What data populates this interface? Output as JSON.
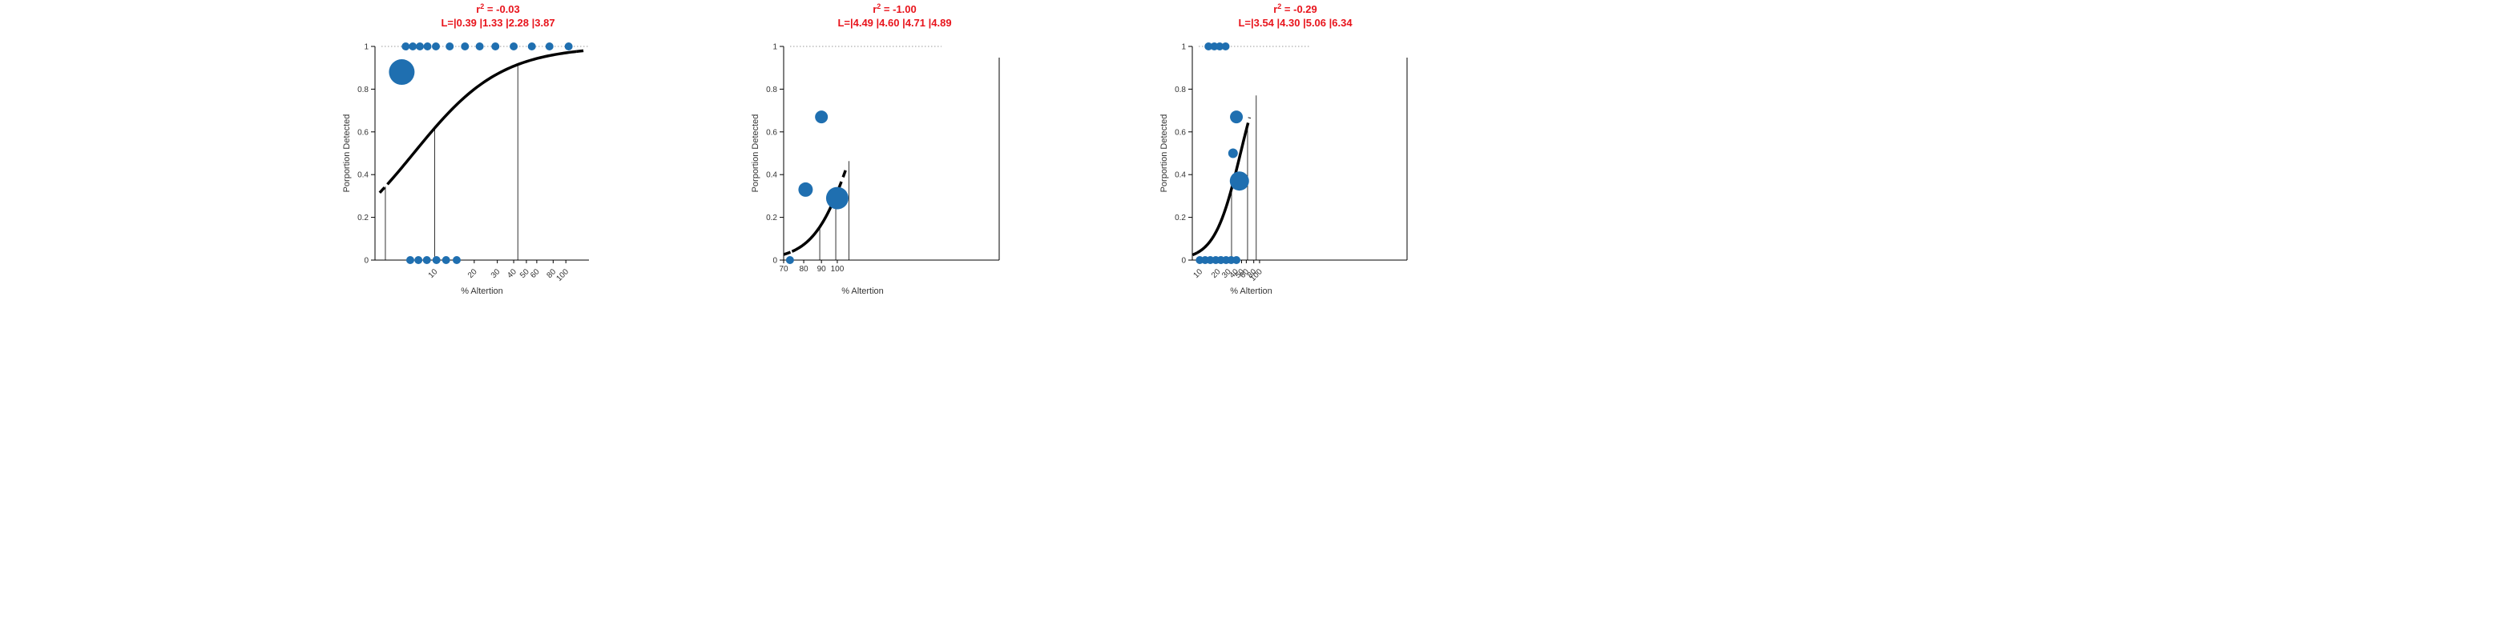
{
  "colors": {
    "title": "#e8141c",
    "marker": "#1f6fb0",
    "curve": "#000000",
    "axis": "#000000",
    "guide": "#999999"
  },
  "chart_data": [
    {
      "type": "scatter",
      "title_line1_prefix": "r",
      "title_line1_sup": "2",
      "title_line1_rest": " = -0.03",
      "title_line2": "L=|0.39 |1.33 |2.28 |3.87",
      "xlabel": "% Altertion",
      "ylabel": "Porportion Detected",
      "yticks": [
        "0",
        "0.2",
        "0.4",
        "0.6",
        "0.8",
        "1"
      ],
      "xticks": [
        "10",
        "20",
        "30",
        "40",
        "50",
        "60",
        "80",
        "100"
      ],
      "x_scale": "log",
      "xlim": [
        3.5,
        150
      ],
      "ylim": [
        0,
        1
      ],
      "points": [
        {
          "x": 5.6,
          "y": 0.88,
          "size": 16
        },
        {
          "x": 6.0,
          "y": 1,
          "size": 5
        },
        {
          "x": 6.8,
          "y": 1,
          "size": 5
        },
        {
          "x": 7.7,
          "y": 1,
          "size": 5
        },
        {
          "x": 8.8,
          "y": 1,
          "size": 5
        },
        {
          "x": 10.2,
          "y": 1,
          "size": 5
        },
        {
          "x": 13,
          "y": 1,
          "size": 5
        },
        {
          "x": 17,
          "y": 1,
          "size": 5
        },
        {
          "x": 22,
          "y": 1,
          "size": 5
        },
        {
          "x": 29,
          "y": 1,
          "size": 5
        },
        {
          "x": 40,
          "y": 1,
          "size": 5
        },
        {
          "x": 55,
          "y": 1,
          "size": 5
        },
        {
          "x": 75,
          "y": 1,
          "size": 5
        },
        {
          "x": 105,
          "y": 1,
          "size": 5
        },
        {
          "x": 6.5,
          "y": 0,
          "size": 5
        },
        {
          "x": 7.5,
          "y": 0,
          "size": 5
        },
        {
          "x": 8.7,
          "y": 0,
          "size": 5
        },
        {
          "x": 10.3,
          "y": 0,
          "size": 5
        },
        {
          "x": 12.2,
          "y": 0,
          "size": 5
        },
        {
          "x": 14.7,
          "y": 0,
          "size": 5
        }
      ],
      "threshold_lines": [
        4.2,
        10,
        43
      ],
      "curve": {
        "x0": 6.9,
        "slope": 1.3,
        "solid_range": [
          4.35,
          120
        ],
        "dash_range": [
          3.8,
          140
        ]
      },
      "extra_frame_x": null
    },
    {
      "type": "scatter",
      "title_line1_prefix": "r",
      "title_line1_sup": "2",
      "title_line1_rest": " = -1.00",
      "title_line2": "L=|4.49 |4.60 |4.71 |4.89",
      "xlabel": "% Altertion",
      "ylabel": "Porportion Detected",
      "yticks": [
        "0",
        "0.2",
        "0.4",
        "0.6",
        "0.8",
        "1"
      ],
      "xticks": [
        "70",
        "80",
        "90",
        "100"
      ],
      "x_scale": "log",
      "xlim": [
        70,
        200
      ],
      "ylim": [
        0,
        1
      ],
      "points": [
        {
          "x": 73,
          "y": 0,
          "size": 5
        },
        {
          "x": 81,
          "y": 0.33,
          "size": 9
        },
        {
          "x": 90,
          "y": 0.67,
          "size": 8
        },
        {
          "x": 100,
          "y": 0.29,
          "size": 14
        }
      ],
      "threshold_lines": [
        89,
        99,
        108
      ],
      "curve": {
        "x0": 110,
        "slope": 8.0,
        "solid_range": [
          74,
          101
        ],
        "dash_range": [
          70,
          106
        ]
      },
      "extra_frame_x": 200
    },
    {
      "type": "scatter",
      "title_line1_prefix": "r",
      "title_line1_sup": "2",
      "title_line1_rest": " = -0.29",
      "title_line2": "L=|3.54 |4.30 |5.06 |6.34",
      "xlabel": "% Altertion",
      "ylabel": "Porportion Detected",
      "yticks": [
        "0",
        "0.2",
        "0.4",
        "0.6",
        "0.8",
        "1"
      ],
      "xticks": [
        "10",
        "20",
        "30",
        "40",
        "50",
        "60",
        "80",
        "100"
      ],
      "x_scale": "log",
      "xlim": [
        7.5,
        700
      ],
      "ylim": [
        0,
        1
      ],
      "points": [
        {
          "x": 14,
          "y": 1,
          "size": 5
        },
        {
          "x": 17.5,
          "y": 1,
          "size": 5
        },
        {
          "x": 21.5,
          "y": 1,
          "size": 5
        },
        {
          "x": 27,
          "y": 1,
          "size": 5
        },
        {
          "x": 10,
          "y": 0,
          "size": 5
        },
        {
          "x": 12.3,
          "y": 0,
          "size": 5
        },
        {
          "x": 15,
          "y": 0,
          "size": 5
        },
        {
          "x": 18.5,
          "y": 0,
          "size": 5
        },
        {
          "x": 22.5,
          "y": 0,
          "size": 5
        },
        {
          "x": 27.5,
          "y": 0,
          "size": 5
        },
        {
          "x": 33.5,
          "y": 0,
          "size": 5
        },
        {
          "x": 41,
          "y": 0,
          "size": 5
        },
        {
          "x": 36,
          "y": 0.5,
          "size": 6
        },
        {
          "x": 41,
          "y": 0.67,
          "size": 8
        },
        {
          "x": 46,
          "y": 0.37,
          "size": 12
        }
      ],
      "threshold_lines": [
        34,
        63,
        88
      ],
      "curve": {
        "x0": 48,
        "slope": 2.0,
        "solid_range": [
          9,
          60
        ],
        "dash_range": [
          7.6,
          68
        ]
      },
      "extra_frame_x": 700
    }
  ]
}
